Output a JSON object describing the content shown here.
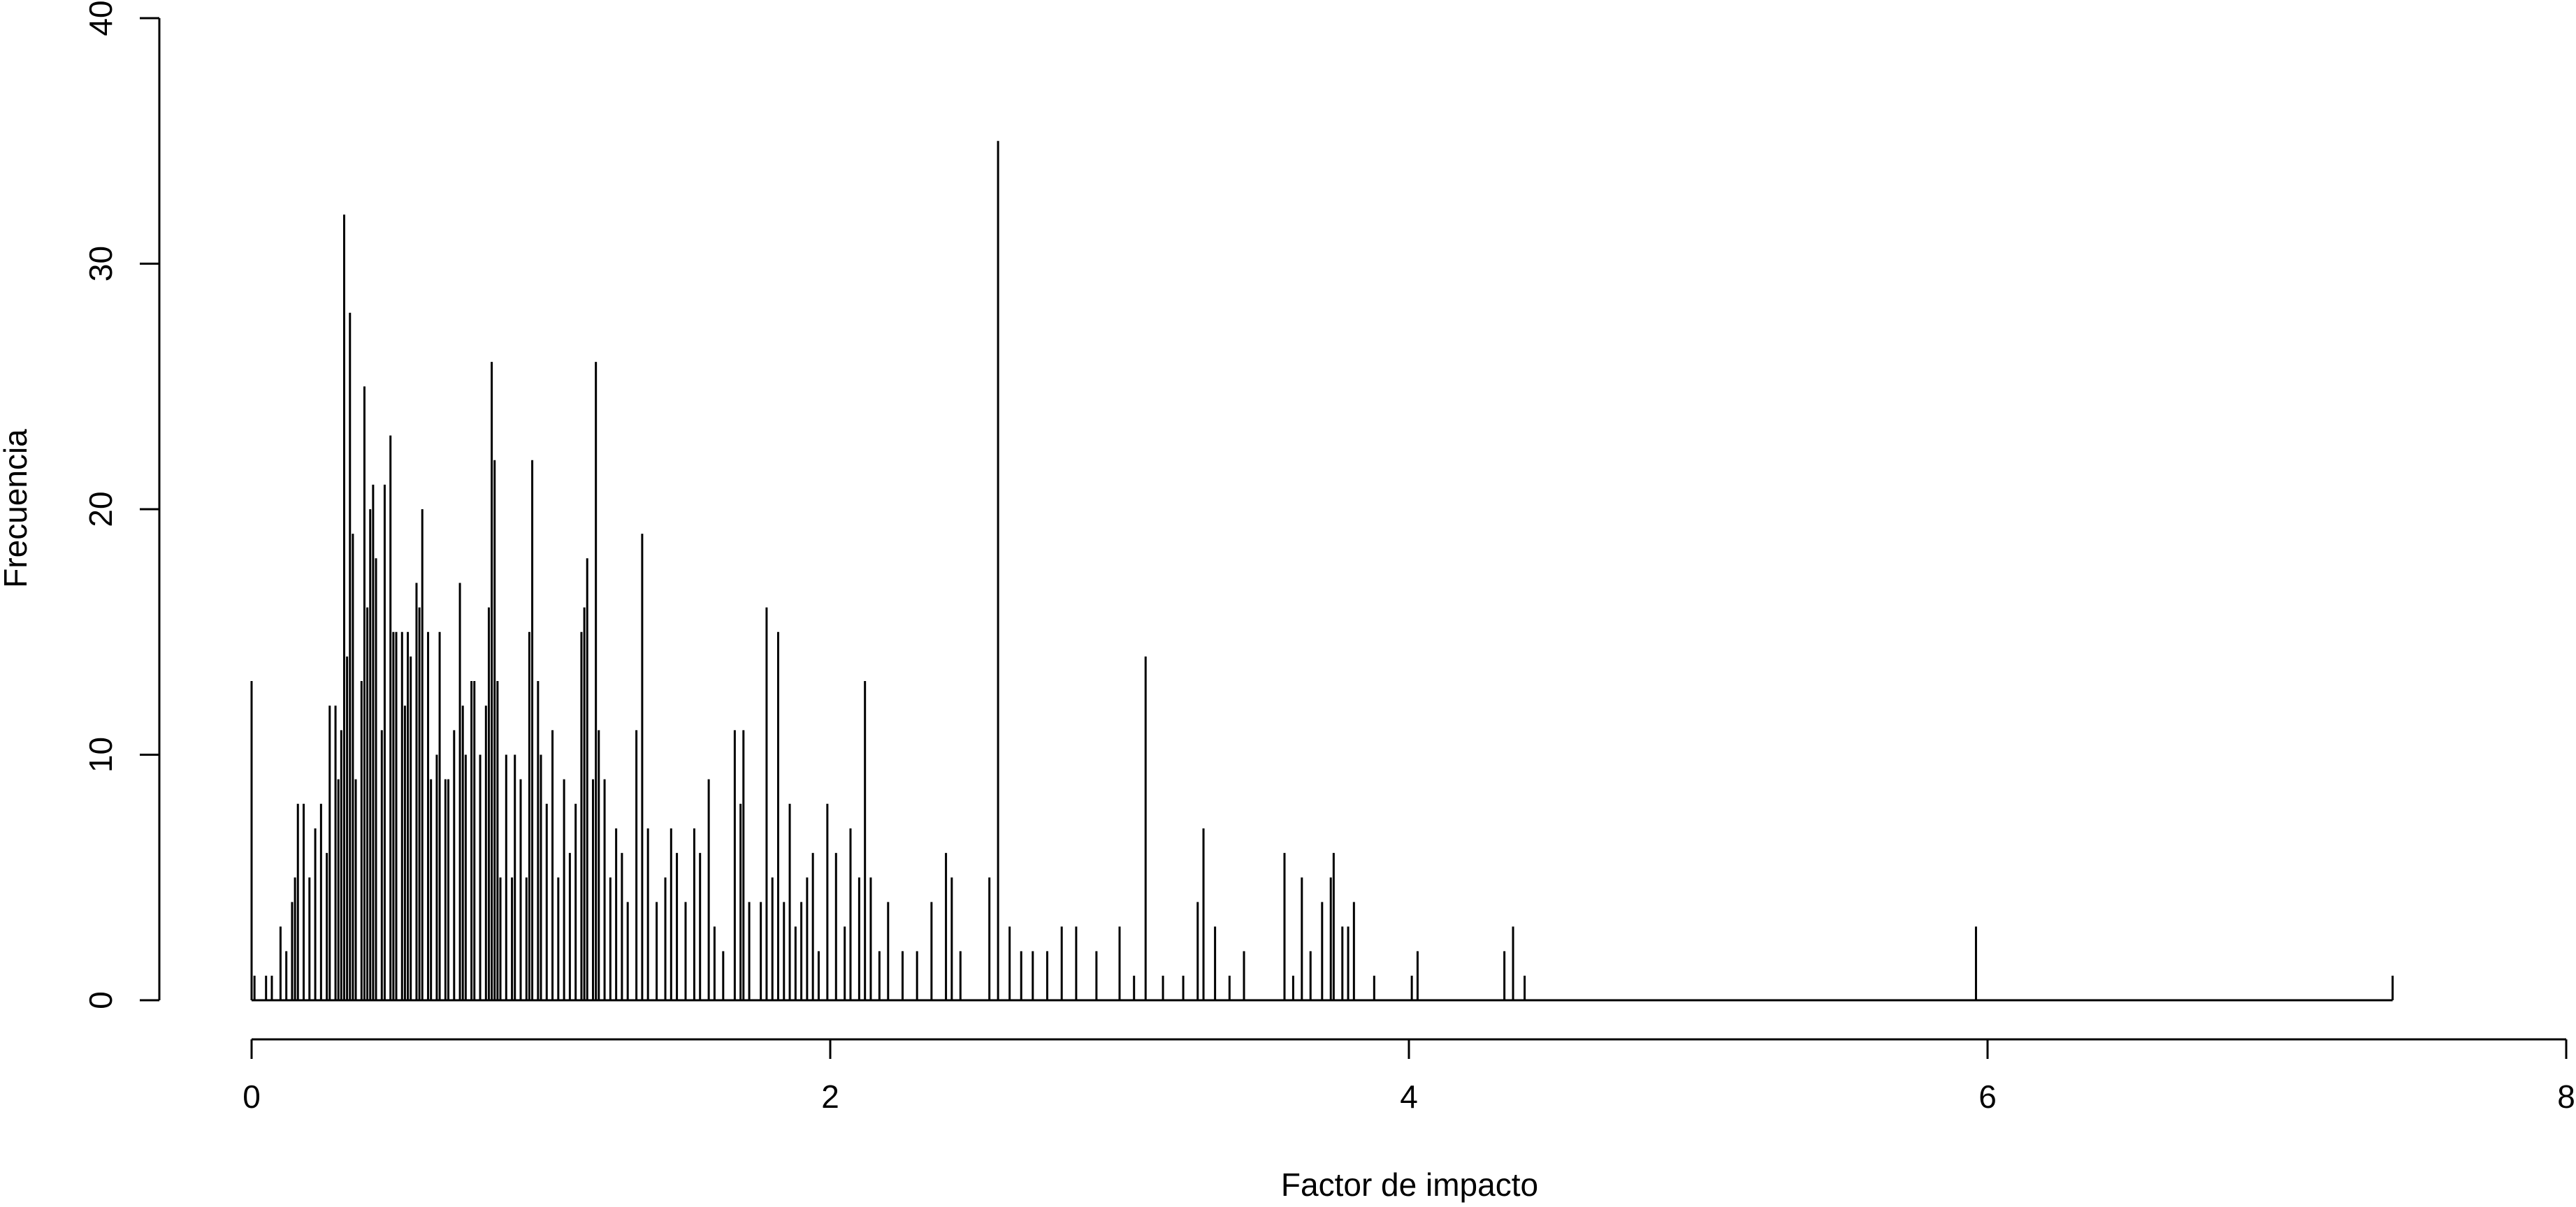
{
  "chart_data": {
    "type": "spike",
    "xlabel": "Factor de impacto",
    "ylabel": "Frecuencia",
    "x": [
      0,
      0.01,
      0.05,
      0.07,
      0.1,
      0.12,
      0.14,
      0.15,
      0.16,
      0.18,
      0.2,
      0.22,
      0.24,
      0.26,
      0.27,
      0.29,
      0.3,
      0.31,
      0.32,
      0.33,
      0.34,
      0.35,
      0.36,
      0.38,
      0.39,
      0.4,
      0.41,
      0.42,
      0.43,
      0.45,
      0.46,
      0.48,
      0.49,
      0.5,
      0.52,
      0.53,
      0.54,
      0.55,
      0.57,
      0.58,
      0.59,
      0.61,
      0.62,
      0.64,
      0.65,
      0.67,
      0.68,
      0.7,
      0.72,
      0.73,
      0.74,
      0.76,
      0.77,
      0.79,
      0.81,
      0.82,
      0.83,
      0.84,
      0.85,
      0.86,
      0.88,
      0.9,
      0.91,
      0.93,
      0.95,
      0.96,
      0.97,
      0.99,
      1.0,
      1.02,
      1.04,
      1.06,
      1.08,
      1.1,
      1.12,
      1.14,
      1.15,
      1.16,
      1.18,
      1.19,
      1.2,
      1.22,
      1.24,
      1.26,
      1.28,
      1.3,
      1.33,
      1.35,
      1.37,
      1.4,
      1.43,
      1.45,
      1.47,
      1.5,
      1.53,
      1.55,
      1.58,
      1.6,
      1.63,
      1.67,
      1.69,
      1.7,
      1.72,
      1.76,
      1.78,
      1.8,
      1.82,
      1.84,
      1.86,
      1.88,
      1.9,
      1.92,
      1.94,
      1.96,
      1.99,
      2.02,
      2.05,
      2.07,
      2.1,
      2.12,
      2.14,
      2.17,
      2.2,
      2.25,
      2.3,
      2.35,
      2.4,
      2.42,
      2.45,
      2.55,
      2.58,
      2.62,
      2.66,
      2.7,
      2.75,
      2.8,
      2.85,
      2.92,
      3.0,
      3.05,
      3.09,
      3.15,
      3.22,
      3.27,
      3.29,
      3.33,
      3.38,
      3.43,
      3.57,
      3.6,
      3.63,
      3.66,
      3.7,
      3.73,
      3.74,
      3.77,
      3.79,
      3.81,
      3.88,
      4.01,
      4.03,
      4.33,
      4.36,
      4.4,
      5.96,
      7.4
    ],
    "values": [
      13,
      1,
      1,
      1,
      3,
      2,
      4,
      5,
      8,
      8,
      5,
      7,
      8,
      6,
      12,
      12,
      9,
      11,
      32,
      14,
      28,
      19,
      9,
      13,
      25,
      16,
      20,
      21,
      18,
      11,
      21,
      23,
      15,
      15,
      15,
      12,
      15,
      14,
      17,
      16,
      20,
      15,
      9,
      10,
      15,
      9,
      9,
      11,
      17,
      12,
      10,
      13,
      13,
      10,
      12,
      16,
      26,
      22,
      13,
      5,
      10,
      5,
      10,
      9,
      5,
      15,
      22,
      13,
      10,
      8,
      11,
      5,
      9,
      6,
      8,
      15,
      16,
      18,
      9,
      26,
      11,
      9,
      5,
      7,
      6,
      4,
      11,
      19,
      7,
      4,
      5,
      7,
      6,
      4,
      7,
      6,
      9,
      3,
      2,
      11,
      8,
      11,
      4,
      4,
      16,
      5,
      15,
      4,
      8,
      3,
      4,
      5,
      6,
      2,
      8,
      6,
      3,
      7,
      5,
      13,
      5,
      2,
      4,
      2,
      2,
      4,
      6,
      5,
      2,
      5,
      35,
      3,
      2,
      2,
      2,
      3,
      3,
      2,
      3,
      1,
      14,
      1,
      1,
      4,
      7,
      3,
      1,
      2,
      6,
      1,
      5,
      2,
      4,
      5,
      6,
      3,
      3,
      4,
      1,
      1,
      2,
      2,
      3,
      1,
      3,
      1
    ],
    "color": "#000000",
    "xlim": [
      0,
      8
    ],
    "xticks": [
      0,
      2,
      4,
      6,
      8
    ],
    "ylim": [
      0,
      40
    ],
    "yticks": [
      0,
      10,
      20,
      30,
      40
    ]
  }
}
